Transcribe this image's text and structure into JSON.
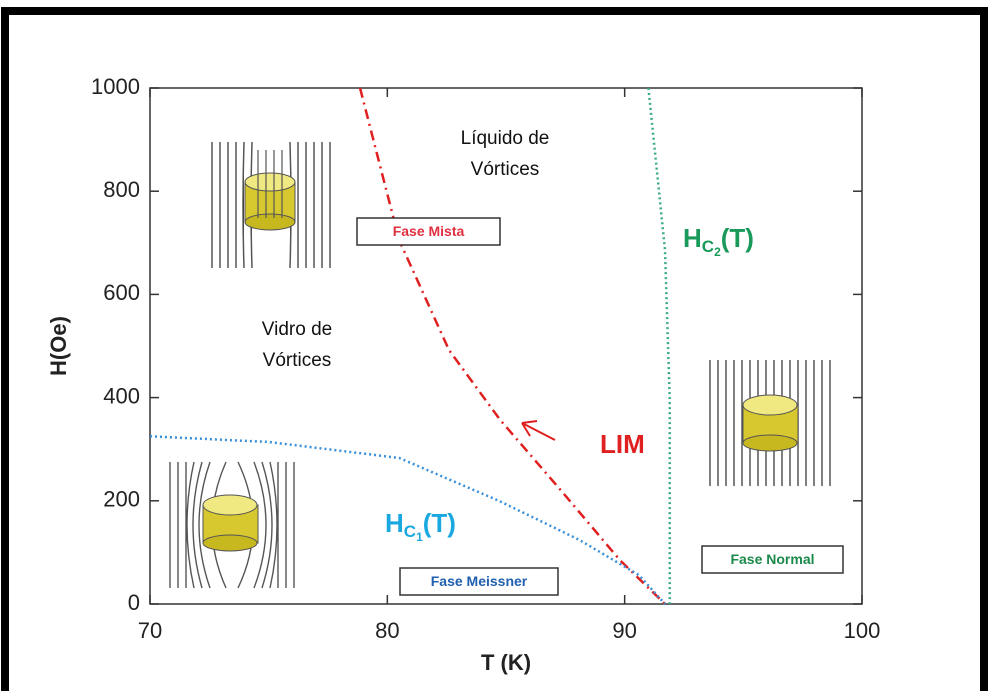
{
  "chart_data": {
    "type": "line",
    "x_label": "T (K)",
    "y_label": "H(Oe)",
    "xlim": [
      70,
      100
    ],
    "ylim": [
      0,
      1000
    ],
    "xticks": [
      70,
      80,
      90,
      100
    ],
    "yticks": [
      0,
      200,
      400,
      600,
      800,
      1000
    ],
    "series": [
      {
        "name": "LIM",
        "color": "#e02020",
        "label_color": "#e02020",
        "line_style": "dashdot",
        "x": [
          78.85,
          80.5,
          82.6,
          84.75,
          87.3,
          89.8,
          91.7
        ],
        "values": [
          1000,
          705,
          492,
          357,
          221,
          85,
          0
        ]
      },
      {
        "name": "HC1(T)",
        "color": "#3a8fd9",
        "label_color": "#1aa8e0",
        "line_style": "dotted",
        "x": [
          70,
          75,
          80.5,
          84.7,
          88.1,
          90.6,
          91.7
        ],
        "values": [
          325,
          314,
          283,
          200,
          124,
          56,
          0
        ]
      },
      {
        "name": "HC2(T)",
        "color": "#3aaa8a",
        "label_color": "#1a9a5a",
        "line_style": "dotted",
        "x": [
          91.0,
          91.7,
          91.9,
          91.9
        ],
        "values": [
          1000,
          686,
          395,
          0
        ]
      }
    ],
    "annotations": [
      {
        "lines": [
          "Líquido de",
          "Vórtices"
        ]
      },
      {
        "lines": [
          "Vidro de",
          "Vórtices"
        ]
      },
      {
        "text": "Fase Mista",
        "color": "#e03040"
      },
      {
        "text": "Fase Meissner",
        "color": "#2060b0"
      },
      {
        "text": "Fase Normal",
        "color": "#1a8a4a"
      }
    ]
  }
}
